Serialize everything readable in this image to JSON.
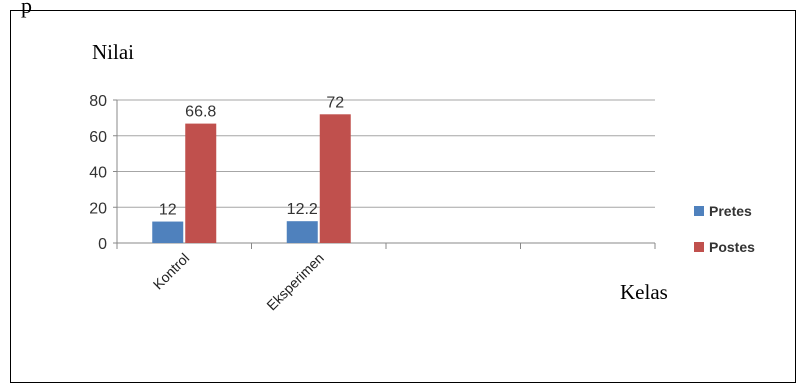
{
  "page": {
    "top_text": "p"
  },
  "chart_data": {
    "type": "bar",
    "categories": [
      "Kontrol",
      "Eksperimen"
    ],
    "series": [
      {
        "name": "Pretes",
        "values": [
          12,
          12.2
        ],
        "labels": [
          "12",
          "12.2"
        ],
        "color": "#4f81bd"
      },
      {
        "name": "Postes",
        "values": [
          66.8,
          72
        ],
        "labels": [
          "66.8",
          "72"
        ],
        "color": "#c0504d"
      }
    ],
    "ylabel": "Nilai",
    "xlabel": "Kelas",
    "ylim": [
      0,
      80
    ],
    "yticks": [
      0,
      20,
      40,
      60,
      80
    ],
    "grid": true,
    "legend": "right"
  }
}
